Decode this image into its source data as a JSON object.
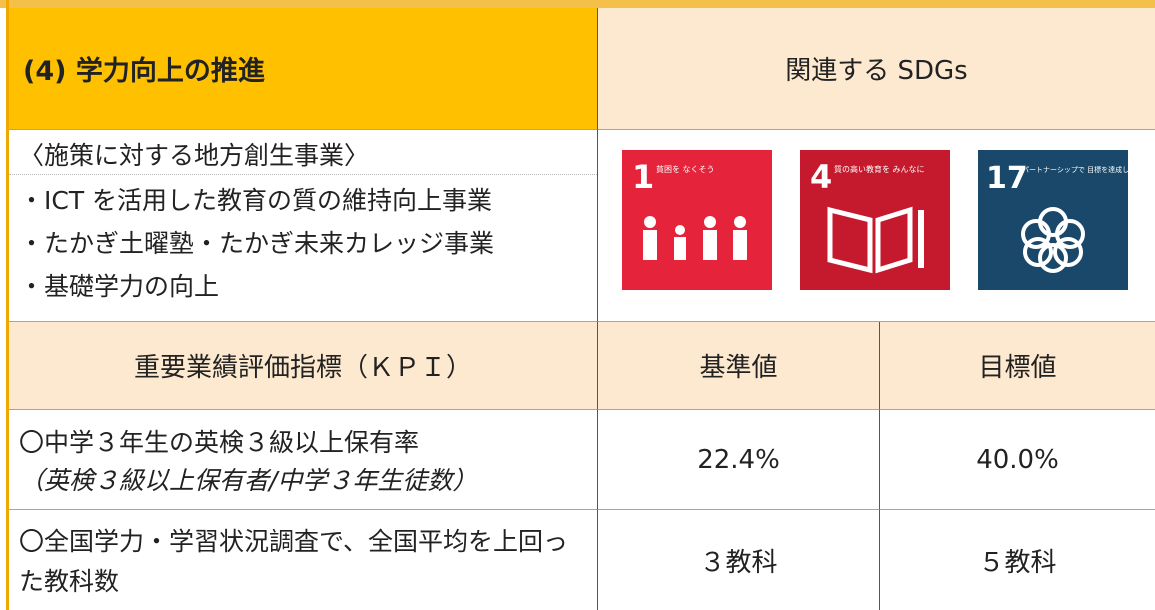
{
  "header": {
    "title": "(4) 学力向上の推進",
    "sdg_heading": "関連する SDGs"
  },
  "measures": {
    "heading": "〈施策に対する地方創生事業〉",
    "items": [
      "・ICT を活用した教育の質の維持向上事業",
      "・たかぎ土曜塾・たかぎ未来カレッジ事業",
      "・基礎学力の向上"
    ]
  },
  "sdgs": [
    {
      "number": "1",
      "label": "貧困を なくそう"
    },
    {
      "number": "4",
      "label": "質の高い教育を みんなに"
    },
    {
      "number": "17",
      "label": "パートナーシップで 目標を達成しよう"
    }
  ],
  "kpi": {
    "headers": [
      "重要業績評価指標（ＫＰＩ）",
      "基準値",
      "目標値"
    ],
    "rows": [
      {
        "indicator": "〇中学３年生の英検３級以上保有率",
        "note": "（英検３級以上保有者/中学３年生徒数）",
        "baseline": "22.4%",
        "target": "40.0%"
      },
      {
        "indicator": "〇全国学力・学習状況調査で、全国平均を上回った教科数",
        "baseline": "３教科",
        "target": "５教科"
      }
    ]
  }
}
